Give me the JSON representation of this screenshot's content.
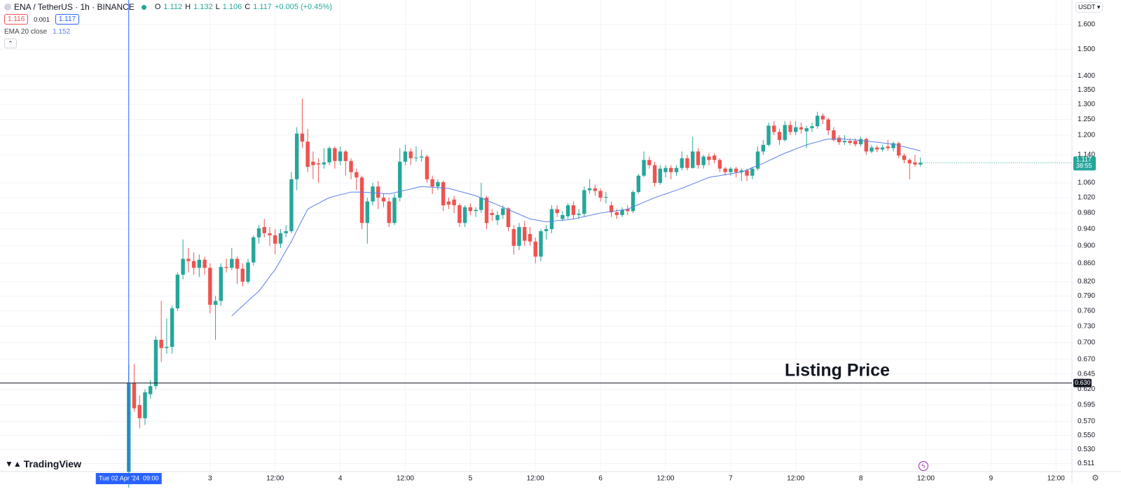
{
  "header": {
    "symbol": "ENA / TetherUS · 1h · BINANCE",
    "ohlc_labels": [
      "O",
      "H",
      "L",
      "C"
    ],
    "change": "+0.005 (+0.45%)",
    "bid": 1.116,
    "spread": 0.001
  },
  "brand": "TradingView",
  "chart_data": {
    "type": "candlestick",
    "log_scale": true,
    "grid": true,
    "currency": "USDT",
    "up_color": "#26a69a",
    "down_color": "#ef5350",
    "ylim": [
      0.5005,
      1.705
    ],
    "yticks": [
      {
        "value": 1.6,
        "label": "1.600"
      },
      {
        "value": 1.5,
        "label": "1.500"
      },
      {
        "value": 1.4,
        "label": "1.400"
      },
      {
        "value": 1.35,
        "label": "1.350"
      },
      {
        "value": 1.3,
        "label": "1.300"
      },
      {
        "value": 1.25,
        "label": "1.250"
      },
      {
        "value": 1.2,
        "label": "1.200"
      },
      {
        "value": 1.14,
        "label": "1.140"
      },
      {
        "value": 1.06,
        "label": "1.060"
      },
      {
        "value": 1.02,
        "label": "1.020"
      },
      {
        "value": 0.98,
        "label": "0.980"
      },
      {
        "value": 0.94,
        "label": "0.940"
      },
      {
        "value": 0.9,
        "label": "0.900"
      },
      {
        "value": 0.86,
        "label": "0.860"
      },
      {
        "value": 0.82,
        "label": "0.820"
      },
      {
        "value": 0.79,
        "label": "0.790"
      },
      {
        "value": 0.76,
        "label": "0.760"
      },
      {
        "value": 0.73,
        "label": "0.730"
      },
      {
        "value": 0.7,
        "label": "0.700"
      },
      {
        "value": 0.67,
        "label": "0.670"
      },
      0.645,
      {
        "value": 0.62,
        "label": "0.620"
      },
      0.595,
      {
        "value": 0.57,
        "label": "0.570"
      },
      {
        "value": 0.55,
        "label": "0.550"
      },
      {
        "value": 0.53,
        "label": "0.530"
      },
      0.511
    ],
    "xlim": [
      -23.74,
      173.94
    ],
    "xticks": [
      {
        "value": 15,
        "label": "3"
      },
      {
        "value": 27,
        "label": "12:00"
      },
      {
        "value": 39,
        "label": "4"
      },
      {
        "value": 51,
        "label": "12:00"
      },
      {
        "value": 63,
        "label": "5"
      },
      {
        "value": 75,
        "label": "12:00"
      },
      {
        "value": 87,
        "label": "6"
      },
      {
        "value": 99,
        "label": "12:00"
      },
      {
        "value": 111,
        "label": "7"
      },
      {
        "value": 123,
        "label": "12:00"
      },
      {
        "value": 135,
        "label": "8"
      },
      {
        "value": 147,
        "label": "12:00"
      },
      {
        "value": 159,
        "label": "9"
      },
      {
        "value": 171,
        "label": "12:00"
      }
    ],
    "crosshair": {
      "x": 0,
      "label": "Tue 02 Apr '24  09:00"
    },
    "annotation": {
      "text": "Listing Price",
      "value": 0.63,
      "label": "0.630"
    },
    "countdown": "38:55",
    "ohlc": [
      [
        0.5,
        0.66,
        0.48,
        0.63
      ],
      [
        0.63,
        0.662,
        0.585,
        0.59
      ],
      [
        0.595,
        0.61,
        0.56,
        0.575
      ],
      [
        0.575,
        0.62,
        0.565,
        0.615
      ],
      [
        0.612,
        0.635,
        0.605,
        0.625
      ],
      [
        0.625,
        0.712,
        0.62,
        0.705
      ],
      [
        0.705,
        0.78,
        0.665,
        0.69
      ],
      [
        0.69,
        0.745,
        0.68,
        0.692
      ],
      [
        0.692,
        0.77,
        0.68,
        0.765
      ],
      [
        0.765,
        0.84,
        0.76,
        0.835
      ],
      [
        0.835,
        0.915,
        0.825,
        0.87
      ],
      [
        0.87,
        0.895,
        0.84,
        0.865
      ],
      [
        0.865,
        0.885,
        0.835,
        0.85
      ],
      [
        0.85,
        0.88,
        0.83,
        0.868
      ],
      [
        0.868,
        0.875,
        0.835,
        0.85
      ],
      [
        0.85,
        0.86,
        0.755,
        0.772
      ],
      [
        0.772,
        0.79,
        0.705,
        0.78
      ],
      [
        0.78,
        0.86,
        0.77,
        0.852
      ],
      [
        0.852,
        0.87,
        0.84,
        0.85
      ],
      [
        0.85,
        0.895,
        0.845,
        0.87
      ],
      [
        0.87,
        0.875,
        0.815,
        0.848
      ],
      [
        0.848,
        0.86,
        0.81,
        0.82
      ],
      [
        0.82,
        0.87,
        0.815,
        0.862
      ],
      [
        0.862,
        0.925,
        0.855,
        0.92
      ],
      [
        0.92,
        0.95,
        0.905,
        0.942
      ],
      [
        0.945,
        0.965,
        0.92,
        0.93
      ],
      [
        0.93,
        0.945,
        0.9,
        0.925
      ],
      [
        0.925,
        0.94,
        0.88,
        0.905
      ],
      [
        0.905,
        0.94,
        0.895,
        0.93
      ],
      [
        0.93,
        0.95,
        0.92,
        0.935
      ],
      [
        0.935,
        1.09,
        0.93,
        1.07
      ],
      [
        1.07,
        1.225,
        1.04,
        1.205
      ],
      [
        1.205,
        1.32,
        1.16,
        1.18
      ],
      [
        1.18,
        1.22,
        1.09,
        1.105
      ],
      [
        1.12,
        1.15,
        1.07,
        1.11
      ],
      [
        1.115,
        1.13,
        1.06,
        1.112
      ],
      [
        1.112,
        1.16,
        1.1,
        1.118
      ],
      [
        1.118,
        1.165,
        1.11,
        1.16
      ],
      [
        1.16,
        1.165,
        1.1,
        1.122
      ],
      [
        1.122,
        1.165,
        1.11,
        1.15
      ],
      [
        1.15,
        1.155,
        1.08,
        1.122
      ],
      [
        1.122,
        1.13,
        1.07,
        1.09
      ],
      [
        1.09,
        1.1,
        1.04,
        1.075
      ],
      [
        1.075,
        1.08,
        0.94,
        0.955
      ],
      [
        0.955,
        1.02,
        0.905,
        1.01
      ],
      [
        1.01,
        1.06,
        1.0,
        1.05
      ],
      [
        1.05,
        1.065,
        0.99,
        1.02
      ],
      [
        1.02,
        1.03,
        0.995,
        1.01
      ],
      [
        1.01,
        1.02,
        0.945,
        0.955
      ],
      [
        0.955,
        1.03,
        0.95,
        1.02
      ],
      [
        1.02,
        1.16,
        1.01,
        1.12
      ],
      [
        1.12,
        1.17,
        1.11,
        1.15
      ],
      [
        1.15,
        1.16,
        1.11,
        1.13
      ],
      [
        1.13,
        1.165,
        1.12,
        1.132
      ],
      [
        1.132,
        1.155,
        1.12,
        1.135
      ],
      [
        1.135,
        1.14,
        1.06,
        1.07
      ],
      [
        1.07,
        1.08,
        1.03,
        1.05
      ],
      [
        1.05,
        1.07,
        1.04,
        1.062
      ],
      [
        1.062,
        1.065,
        0.985,
        1.0
      ],
      [
        1.01,
        1.02,
        0.99,
        1.002
      ],
      [
        1.015,
        1.025,
        0.98,
        1.0
      ],
      [
        1.0,
        1.005,
        0.945,
        0.955
      ],
      [
        0.955,
        1.0,
        0.945,
        0.995
      ],
      [
        0.995,
        1.005,
        0.975,
        0.985
      ],
      [
        0.985,
        0.995,
        0.97,
        0.988
      ],
      [
        0.988,
        1.06,
        0.98,
        1.02
      ],
      [
        1.02,
        1.025,
        0.94,
        0.955
      ],
      [
        0.98,
        0.99,
        0.96,
        0.975
      ],
      [
        0.962,
        0.985,
        0.95,
        0.975
      ],
      [
        0.975,
        1.0,
        0.965,
        0.992
      ],
      [
        0.992,
        0.995,
        0.935,
        0.945
      ],
      [
        0.94,
        0.95,
        0.88,
        0.9
      ],
      [
        0.9,
        0.955,
        0.89,
        0.945
      ],
      [
        0.945,
        0.96,
        0.9,
        0.912
      ],
      [
        0.928,
        0.945,
        0.9,
        0.91
      ],
      [
        0.91,
        0.92,
        0.86,
        0.875
      ],
      [
        0.875,
        0.94,
        0.865,
        0.935
      ],
      [
        0.935,
        0.95,
        0.915,
        0.94
      ],
      [
        0.94,
        1.0,
        0.93,
        0.99
      ],
      [
        0.99,
        1.0,
        0.97,
        0.98
      ],
      [
        0.965,
        0.985,
        0.96,
        0.975
      ],
      [
        0.972,
        1.005,
        0.965,
        1.0
      ],
      [
        1.0,
        1.01,
        0.965,
        0.975
      ],
      [
        0.975,
        0.99,
        0.965,
        0.978
      ],
      [
        0.978,
        1.05,
        0.97,
        1.04
      ],
      [
        1.04,
        1.07,
        1.03,
        1.045
      ],
      [
        1.045,
        1.055,
        1.025,
        1.038
      ],
      [
        1.038,
        1.045,
        1.01,
        1.02
      ],
      [
        1.02,
        1.035,
        1.005,
        1.022
      ],
      [
        1.0,
        1.01,
        0.97,
        0.982
      ],
      [
        0.982,
        0.99,
        0.965,
        0.975
      ],
      [
        0.975,
        0.995,
        0.97,
        0.988
      ],
      [
        0.99,
        1.0,
        0.975,
        0.985
      ],
      [
        0.985,
        1.04,
        0.98,
        1.035
      ],
      [
        1.035,
        1.085,
        1.03,
        1.08
      ],
      [
        1.08,
        1.15,
        1.075,
        1.125
      ],
      [
        1.125,
        1.135,
        1.1,
        1.11
      ],
      [
        1.11,
        1.12,
        1.05,
        1.06
      ],
      [
        1.06,
        1.11,
        1.055,
        1.1
      ],
      [
        1.09,
        1.11,
        1.075,
        1.102
      ],
      [
        1.102,
        1.11,
        1.07,
        1.09
      ],
      [
        1.09,
        1.11,
        1.08,
        1.102
      ],
      [
        1.102,
        1.15,
        1.095,
        1.13
      ],
      [
        1.13,
        1.14,
        1.095,
        1.102
      ],
      [
        1.102,
        1.195,
        1.1,
        1.15
      ],
      [
        1.15,
        1.16,
        1.1,
        1.11
      ],
      [
        1.11,
        1.14,
        1.1,
        1.135
      ],
      [
        1.135,
        1.145,
        1.11,
        1.125
      ],
      [
        1.138,
        1.145,
        1.115,
        1.125
      ],
      [
        1.125,
        1.13,
        1.09,
        1.1
      ],
      [
        1.1,
        1.105,
        1.08,
        1.09
      ],
      [
        1.09,
        1.105,
        1.08,
        1.1
      ],
      [
        1.1,
        1.105,
        1.075,
        1.09
      ],
      [
        1.09,
        1.1,
        1.065,
        1.095
      ],
      [
        1.095,
        1.1,
        1.065,
        1.08
      ],
      [
        1.08,
        1.105,
        1.07,
        1.1
      ],
      [
        1.1,
        1.165,
        1.095,
        1.15
      ],
      [
        1.15,
        1.185,
        1.14,
        1.17
      ],
      [
        1.17,
        1.24,
        1.165,
        1.23
      ],
      [
        1.23,
        1.245,
        1.2,
        1.21
      ],
      [
        1.21,
        1.22,
        1.17,
        1.185
      ],
      [
        1.185,
        1.245,
        1.18,
        1.232
      ],
      [
        1.232,
        1.245,
        1.2,
        1.21
      ],
      [
        1.21,
        1.245,
        1.2,
        1.225
      ],
      [
        1.225,
        1.24,
        1.205,
        1.218
      ],
      [
        1.212,
        1.23,
        1.16,
        1.222
      ],
      [
        1.222,
        1.24,
        1.21,
        1.228
      ],
      [
        1.228,
        1.275,
        1.22,
        1.262
      ],
      [
        1.262,
        1.27,
        1.235,
        1.25
      ],
      [
        1.25,
        1.255,
        1.2,
        1.215
      ],
      [
        1.215,
        1.225,
        1.18,
        1.185
      ],
      [
        1.192,
        1.2,
        1.17,
        1.178
      ],
      [
        1.178,
        1.2,
        1.17,
        1.182
      ],
      [
        1.182,
        1.19,
        1.17,
        1.176
      ],
      [
        1.182,
        1.19,
        1.165,
        1.172
      ],
      [
        1.172,
        1.195,
        1.165,
        1.188
      ],
      [
        1.188,
        1.192,
        1.14,
        1.15
      ],
      [
        1.15,
        1.17,
        1.145,
        1.162
      ],
      [
        1.162,
        1.168,
        1.148,
        1.156
      ],
      [
        1.156,
        1.17,
        1.15,
        1.162
      ],
      [
        1.165,
        1.185,
        1.152,
        1.16
      ],
      [
        1.16,
        1.18,
        1.15,
        1.175
      ],
      [
        1.175,
        1.18,
        1.13,
        1.138
      ],
      [
        1.138,
        1.145,
        1.115,
        1.125
      ],
      [
        1.125,
        1.13,
        1.07,
        1.115
      ],
      [
        1.118,
        1.14,
        1.105,
        1.112
      ],
      [
        1.112,
        1.132,
        1.106,
        1.117
      ]
    ],
    "series": [
      {
        "name": "EMA 20 close",
        "color": "#5b7fe8",
        "values": [
          null,
          null,
          null,
          null,
          null,
          null,
          null,
          null,
          null,
          null,
          null,
          null,
          null,
          null,
          null,
          null,
          null,
          null,
          null,
          0.75,
          0.76,
          0.77,
          0.78,
          0.79,
          0.8,
          0.815,
          0.831,
          0.846,
          0.867,
          0.889,
          0.91,
          0.937,
          0.963,
          0.99,
          0.998,
          1.005,
          1.013,
          1.02,
          1.024,
          1.028,
          1.031,
          1.035,
          1.035,
          1.035,
          1.034,
          1.033,
          1.032,
          1.031,
          1.03,
          1.033,
          1.037,
          1.04,
          1.043,
          1.047,
          1.05,
          1.049,
          1.048,
          1.047,
          1.046,
          1.045,
          1.041,
          1.037,
          1.033,
          1.029,
          1.025,
          1.019,
          1.013,
          1.007,
          1.001,
          0.995,
          0.989,
          0.983,
          0.977,
          0.971,
          0.965,
          0.963,
          0.96,
          0.958,
          0.959,
          0.961,
          0.962,
          0.963,
          0.965,
          0.968,
          0.971,
          0.974,
          0.977,
          0.98,
          0.982,
          0.984,
          0.986,
          0.988,
          0.99,
          0.996,
          1.002,
          1.008,
          1.014,
          1.02,
          1.025,
          1.03,
          1.035,
          1.04,
          1.045,
          1.051,
          1.057,
          1.063,
          1.069,
          1.075,
          1.078,
          1.08,
          1.083,
          1.085,
          1.088,
          1.09,
          1.096,
          1.103,
          1.109,
          1.115,
          1.123,
          1.13,
          1.138,
          1.145,
          1.151,
          1.158,
          1.164,
          1.17,
          1.175,
          1.179,
          1.184,
          1.188,
          1.188,
          1.188,
          1.188,
          1.186,
          1.185,
          1.183,
          1.182,
          1.18,
          1.178,
          1.176,
          1.174,
          1.172,
          1.168,
          1.164,
          1.16,
          1.156,
          1.152
        ]
      }
    ]
  }
}
